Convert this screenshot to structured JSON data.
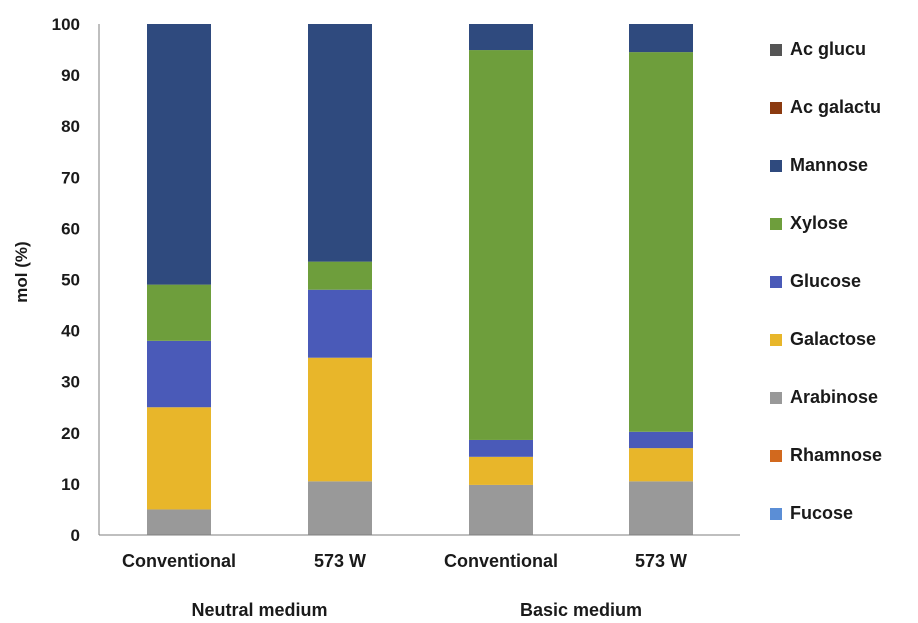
{
  "chart_data": {
    "type": "bar",
    "stacked": true,
    "ylabel": "mol (%)",
    "ylim": [
      0,
      100
    ],
    "yticks": [
      0,
      10,
      20,
      30,
      40,
      50,
      60,
      70,
      80,
      90,
      100
    ],
    "categories": [
      "Conventional",
      "573 W",
      "Conventional",
      "573 W"
    ],
    "groups": [
      {
        "label": "Neutral medium",
        "categories": [
          0,
          1
        ]
      },
      {
        "label": "Basic medium",
        "categories": [
          2,
          3
        ]
      }
    ],
    "grid": false,
    "legend_position": "right",
    "series": [
      {
        "name": "Fucose",
        "color": "#5b8ed6",
        "values": [
          0,
          0,
          0,
          0
        ]
      },
      {
        "name": "Rhamnose",
        "color": "#d2691e",
        "values": [
          0,
          0,
          0,
          0
        ]
      },
      {
        "name": "Arabinose",
        "color": "#999999",
        "values": [
          5,
          10.5,
          9.8,
          10.5
        ]
      },
      {
        "name": "Galactose",
        "color": "#e8b62a",
        "values": [
          20,
          24.2,
          5.5,
          6.5
        ]
      },
      {
        "name": "Glucose",
        "color": "#4a5ab8",
        "values": [
          13,
          13.3,
          3.3,
          3.2
        ]
      },
      {
        "name": "Xylose",
        "color": "#6e9e3c",
        "values": [
          11,
          5.5,
          76.3,
          74.3
        ]
      },
      {
        "name": "Mannose",
        "color": "#2f4a7e",
        "values": [
          51,
          46.5,
          5.1,
          5.5
        ]
      },
      {
        "name": "Ac galactu",
        "color": "#8b3a10",
        "values": [
          0,
          0,
          0,
          0
        ]
      },
      {
        "name": "Ac glucu",
        "color": "#555555",
        "values": [
          0,
          0,
          0,
          0
        ]
      }
    ],
    "legend_order": [
      "Ac glucu",
      "Ac galactu",
      "Mannose",
      "Xylose",
      "Glucose",
      "Galactose",
      "Arabinose",
      "Rhamnose",
      "Fucose"
    ]
  }
}
